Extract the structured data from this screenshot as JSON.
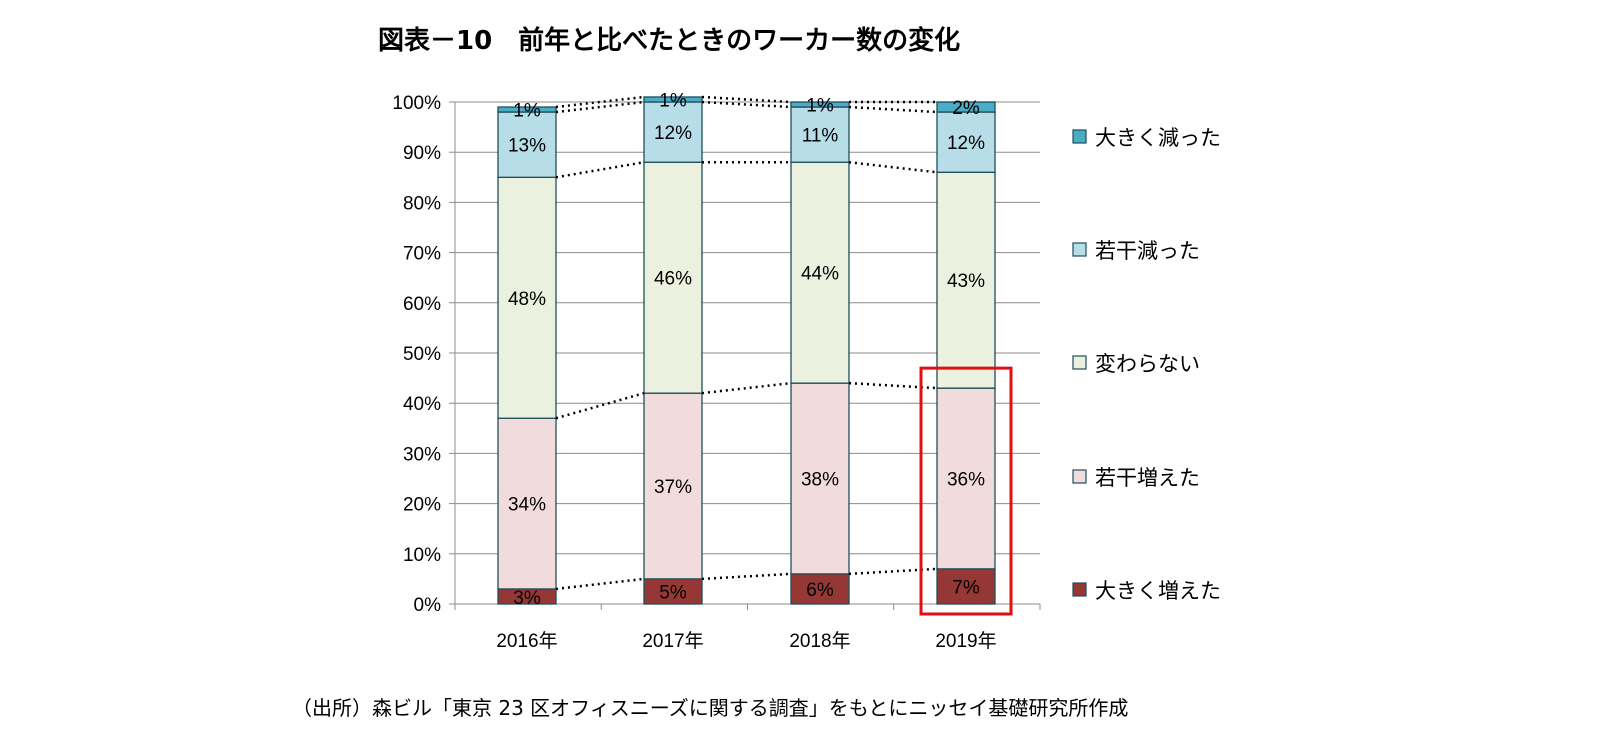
{
  "title": "図表－10　前年と比べたときのワーカー数の変化",
  "source": "（出所）森ビル「東京 23 区オフィスニーズに関する調査」をもとにニッセイ基礎研究所作成",
  "chart_data": {
    "type": "bar",
    "stacked": true,
    "percent": true,
    "categories": [
      "2016年",
      "2017年",
      "2018年",
      "2019年"
    ],
    "y_ticks": [
      "0%",
      "10%",
      "20%",
      "30%",
      "40%",
      "50%",
      "60%",
      "70%",
      "80%",
      "90%",
      "100%"
    ],
    "ylim": [
      0,
      100
    ],
    "grid": true,
    "legend_position": "right",
    "highlight_category": "2019年",
    "highlight_color": "#e01010",
    "series": [
      {
        "name": "大きく増えた",
        "values": [
          3,
          5,
          6,
          7
        ],
        "labels": [
          "3%",
          "5%",
          "6%",
          "7%"
        ],
        "color": "#953735"
      },
      {
        "name": "若干増えた",
        "values": [
          34,
          37,
          38,
          36
        ],
        "labels": [
          "34%",
          "37%",
          "38%",
          "36%"
        ],
        "color": "#f2dcdb"
      },
      {
        "name": "変わらない",
        "values": [
          48,
          46,
          44,
          43
        ],
        "labels": [
          "48%",
          "46%",
          "44%",
          "43%"
        ],
        "color": "#ebf1de"
      },
      {
        "name": "若干減った",
        "values": [
          13,
          12,
          11,
          12
        ],
        "labels": [
          "13%",
          "12%",
          "11%",
          "12%"
        ],
        "color": "#b7dee8"
      },
      {
        "name": "大きく減った",
        "values": [
          1,
          1,
          1,
          2
        ],
        "labels": [
          "1%",
          "1%",
          "1%",
          "2%"
        ],
        "color": "#4bacc6"
      }
    ]
  }
}
